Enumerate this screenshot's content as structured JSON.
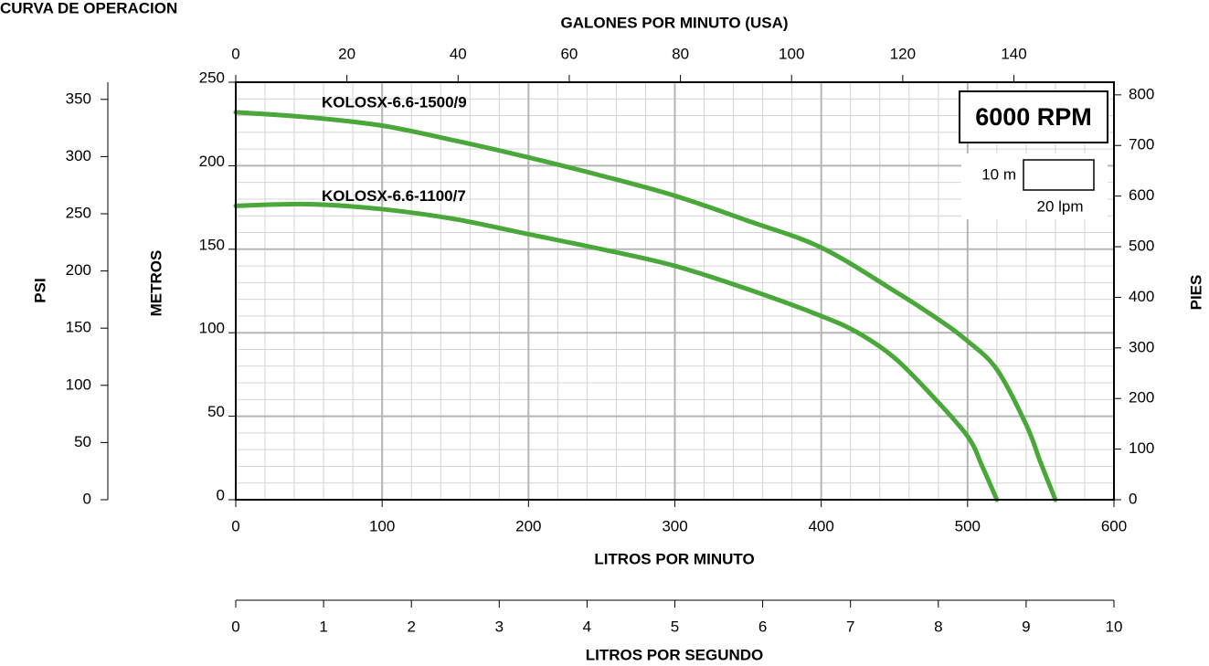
{
  "chart_data": {
    "type": "line",
    "title": "CURVA DE OPERACION",
    "x_label": "LITROS POR MINUTO",
    "y_label": "METROS",
    "xlim": [
      0,
      600
    ],
    "xticks": [
      0,
      100,
      200,
      300,
      400,
      500,
      600
    ],
    "ylim": [
      0,
      250
    ],
    "yticks": [
      0,
      50,
      100,
      150,
      200,
      250
    ],
    "grid": true,
    "series": [
      {
        "name": "KOLOSX-6.6-1500/9",
        "color": "#4aa83a",
        "x": [
          0,
          50,
          100,
          150,
          200,
          250,
          300,
          350,
          400,
          450,
          480,
          500,
          520,
          540,
          550,
          560
        ],
        "values": [
          232,
          229,
          224,
          215,
          205,
          194,
          182,
          167,
          151,
          125,
          108,
          95,
          78,
          45,
          22,
          0
        ]
      },
      {
        "name": "KOLOSX-6.6-1100/7",
        "color": "#4aa83a",
        "x": [
          0,
          50,
          100,
          150,
          200,
          250,
          300,
          350,
          400,
          425,
          450,
          475,
          500,
          510,
          520
        ],
        "values": [
          176,
          177,
          174,
          168,
          159,
          150,
          140,
          126,
          110,
          100,
          85,
          63,
          38,
          20,
          0
        ]
      }
    ],
    "psi_axis": {
      "label": "PSI",
      "lim": [
        0,
        365
      ],
      "ticks": [
        0,
        50,
        100,
        150,
        200,
        250,
        300,
        350
      ]
    },
    "feet_axis": {
      "label": "PIES",
      "lim": [
        0,
        825
      ],
      "ticks": [
        0,
        100,
        200,
        300,
        400,
        500,
        600,
        700,
        800
      ]
    },
    "gpm_axis": {
      "label": "GALONES POR MINUTO (USA)",
      "lim": [
        0,
        158
      ],
      "ticks": [
        0,
        20,
        40,
        60,
        80,
        100,
        120,
        140
      ]
    },
    "lps_axis": {
      "label": "LITROS POR SEGUNDO",
      "lim": [
        0,
        10
      ],
      "ticks": [
        0,
        1,
        2,
        3,
        4,
        5,
        6,
        7,
        8,
        9,
        10
      ]
    },
    "rpm_label": "6000 RPM",
    "grid_scale": {
      "y": "10 m",
      "x": "20 lpm"
    }
  }
}
